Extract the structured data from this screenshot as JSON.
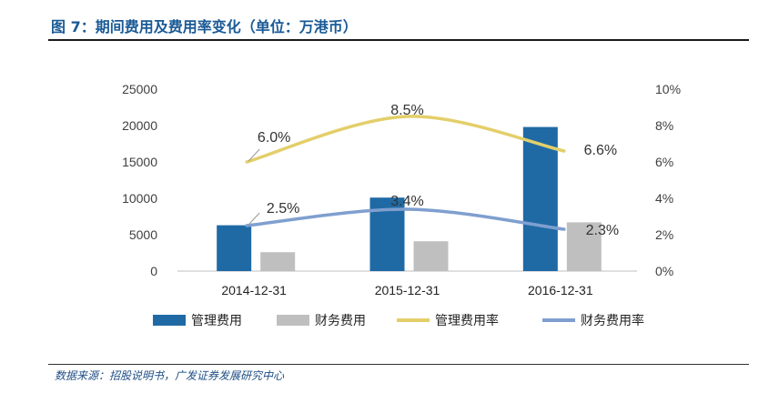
{
  "page": {
    "title": "图 7：期间费用及费用率变化（单位：万港币）",
    "source": "数据来源：招股说明书，广发证券发展研究中心"
  },
  "colors": {
    "bar_mgmt": "#1f6aa5",
    "bar_fin": "#bfbfbf",
    "line_mgmt": "#e3cf6a",
    "line_fin": "#7f9fcf"
  },
  "chart_data": {
    "type": "bar+line",
    "title": "期间费用及费用率变化（单位：万港币）",
    "categories": [
      "2014-12-31",
      "2015-12-31",
      "2016-12-31"
    ],
    "left_axis": {
      "min": 0,
      "max": 25000,
      "ticks": [
        "0",
        "5000",
        "10000",
        "15000",
        "20000",
        "25000"
      ]
    },
    "right_axis": {
      "min": 0,
      "max": 10,
      "ticks": [
        "0%",
        "2%",
        "4%",
        "6%",
        "8%",
        "10%"
      ]
    },
    "bar_series": [
      {
        "name": "管理费用",
        "values": [
          6300,
          10100,
          19800
        ]
      },
      {
        "name": "财务费用",
        "values": [
          2600,
          4100,
          6700
        ]
      }
    ],
    "line_series": [
      {
        "name": "管理费用率",
        "values": [
          6.0,
          8.5,
          6.6
        ],
        "labels": [
          "6.0%",
          "8.5%",
          "6.6%"
        ]
      },
      {
        "name": "财务费用率",
        "values": [
          2.5,
          3.4,
          2.3
        ],
        "labels": [
          "2.5%",
          "3.4%",
          "2.3%"
        ]
      }
    ],
    "legend": [
      "管理费用",
      "财务费用",
      "管理费用率",
      "财务费用率"
    ]
  }
}
